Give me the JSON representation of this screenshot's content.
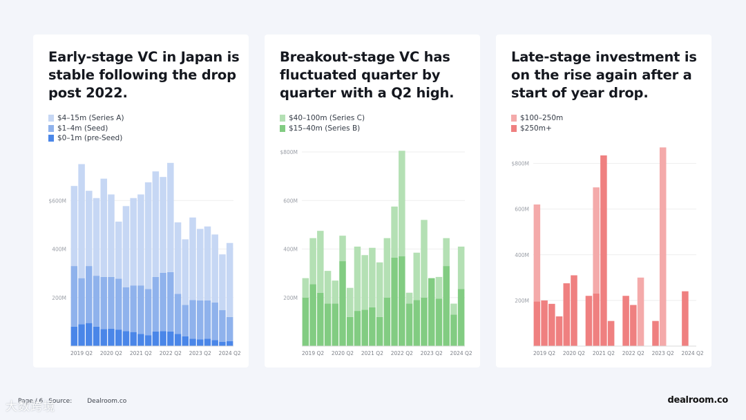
{
  "charts": [
    {
      "title": "Early-stage VC in Japan is stable following the drop post 2022.",
      "chart_data": {
        "type": "bar",
        "stacked": true,
        "xlabel": "",
        "ylabel": "",
        "ylim": [
          0,
          800
        ],
        "y_ticks": [
          {
            "value": 200,
            "label": "200M"
          },
          {
            "value": 400,
            "label": "400M"
          },
          {
            "value": 600,
            "label": "$600M"
          }
        ],
        "x_ticks": [
          "2019 Q2",
          "2020 Q2",
          "2021 Q2",
          "2022 Q2",
          "2023 Q2",
          "2024 Q2"
        ],
        "categories": [
          "2019 Q1",
          "2019 Q2",
          "2019 Q3",
          "2019 Q4",
          "2020 Q1",
          "2020 Q2",
          "2020 Q3",
          "2020 Q4",
          "2021 Q1",
          "2021 Q2",
          "2021 Q3",
          "2021 Q4",
          "2022 Q1",
          "2022 Q2",
          "2022 Q3",
          "2022 Q4",
          "2023 Q1",
          "2023 Q2",
          "2023 Q3",
          "2023 Q4",
          "2024 Q1",
          "2024 Q2"
        ],
        "grid": true,
        "legend_position": "top-left",
        "series": [
          {
            "name": "$0–1m (pre-Seed)",
            "color": "#4a86e8",
            "values": [
              80,
              90,
              95,
              80,
              70,
              72,
              68,
              62,
              58,
              50,
              45,
              60,
              62,
              60,
              50,
              40,
              30,
              28,
              30,
              25,
              18,
              20
            ]
          },
          {
            "name": "$1–4m (Seed)",
            "color": "#8fb2ec",
            "values": [
              250,
              190,
              235,
              210,
              215,
              213,
              210,
              180,
              192,
              200,
              190,
              225,
              240,
              245,
              165,
              130,
              160,
              160,
              158,
              155,
              130,
              100
            ]
          },
          {
            "name": "$4–15m (Series A)",
            "color": "#c6d7f4",
            "values": [
              330,
              470,
              310,
              320,
              405,
              340,
              235,
              335,
              360,
              375,
              440,
              435,
              395,
              450,
              295,
              270,
              340,
              295,
              305,
              280,
              230,
              305
            ]
          }
        ]
      }
    },
    {
      "title": "Breakout-stage VC has fluctuated quarter by quarter with a Q2 high.",
      "chart_data": {
        "type": "bar",
        "stacked": true,
        "xlabel": "",
        "ylabel": "",
        "ylim": [
          0,
          800
        ],
        "y_ticks": [
          {
            "value": 200,
            "label": "200M"
          },
          {
            "value": 400,
            "label": "400M"
          },
          {
            "value": 600,
            "label": "600M"
          },
          {
            "value": 800,
            "label": "$800M"
          }
        ],
        "x_ticks": [
          "2019 Q2",
          "2020 Q2",
          "2021 Q2",
          "2022 Q2",
          "2023 Q2",
          "2024 Q2"
        ],
        "categories": [
          "2019 Q1",
          "2019 Q2",
          "2019 Q3",
          "2019 Q4",
          "2020 Q1",
          "2020 Q2",
          "2020 Q3",
          "2020 Q4",
          "2021 Q1",
          "2021 Q2",
          "2021 Q3",
          "2021 Q4",
          "2022 Q1",
          "2022 Q2",
          "2022 Q3",
          "2022 Q4",
          "2023 Q1",
          "2023 Q2",
          "2023 Q3",
          "2023 Q4",
          "2024 Q1",
          "2024 Q2"
        ],
        "grid": true,
        "legend_position": "top-left",
        "series": [
          {
            "name": "$15–40m (Series B)",
            "color": "#82cc82",
            "values": [
              200,
              255,
              220,
              175,
              175,
              350,
              120,
              145,
              150,
              160,
              120,
              200,
              365,
              370,
              175,
              190,
              200,
              280,
              195,
              330,
              130,
              235
            ]
          },
          {
            "name": "$40–100m (Series C)",
            "color": "#b4e0b4",
            "values": [
              80,
              190,
              255,
              135,
              95,
              105,
              120,
              265,
              225,
              245,
              225,
              245,
              210,
              435,
              45,
              195,
              320,
              0,
              90,
              115,
              45,
              175
            ]
          }
        ]
      }
    },
    {
      "title": "Late-stage investment is on the rise again after a start of year drop.",
      "chart_data": {
        "type": "bar",
        "stacked": true,
        "xlabel": "",
        "ylabel": "",
        "ylim": [
          0,
          850
        ],
        "y_ticks": [
          {
            "value": 200,
            "label": "200M"
          },
          {
            "value": 400,
            "label": "400M"
          },
          {
            "value": 600,
            "label": "600M"
          },
          {
            "value": 800,
            "label": "$800M"
          }
        ],
        "x_ticks": [
          "2019 Q2",
          "2020 Q2",
          "2021 Q2",
          "2022 Q2",
          "2023 Q2",
          "2024 Q2"
        ],
        "categories": [
          "2019 Q1",
          "2019 Q2",
          "2019 Q3",
          "2019 Q4",
          "2020 Q1",
          "2020 Q2",
          "2020 Q3",
          "2020 Q4",
          "2021 Q1",
          "2021 Q2",
          "2021 Q3",
          "2021 Q4",
          "2022 Q1",
          "2022 Q2",
          "2022 Q3",
          "2022 Q4",
          "2023 Q1",
          "2023 Q2",
          "2023 Q3",
          "2023 Q4",
          "2024 Q1",
          "2024 Q2"
        ],
        "grid": true,
        "legend_position": "top-left",
        "series": [
          {
            "name": "$250m+",
            "color": "#ef8080",
            "values": [
              195,
              200,
              185,
              130,
              275,
              310,
              0,
              220,
              230,
              835,
              110,
              0,
              220,
              180,
              0,
              0,
              110,
              0,
              0,
              0,
              240,
              0
            ]
          },
          {
            "name": "$100–250m",
            "color": "#f4aaaa",
            "values": [
              425,
              0,
              0,
              0,
              0,
              0,
              0,
              0,
              465,
              0,
              0,
              0,
              0,
              0,
              300,
              0,
              0,
              870,
              0,
              0,
              0,
              0
            ]
          }
        ]
      }
    }
  ],
  "footer": {
    "page": "Page / 6",
    "source_label": "Source:",
    "source": "Dealroom.co",
    "logo": "dealroom.co",
    "watermark": "大数跨境"
  }
}
